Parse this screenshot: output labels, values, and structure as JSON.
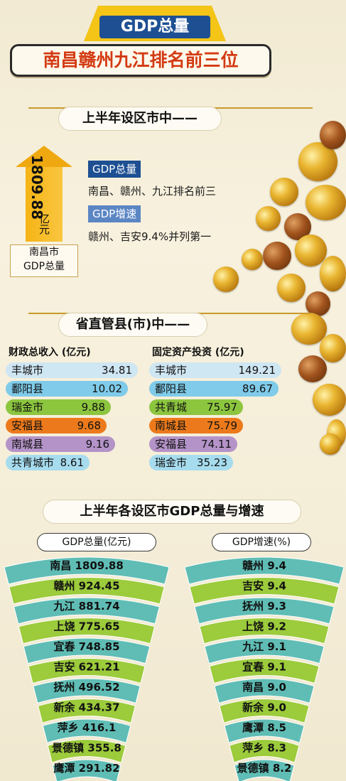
{
  "header": {
    "badge": "GDP总量",
    "subtitle": "南昌赣州九江排名前三位"
  },
  "section1": {
    "heading": "上半年设区市中——",
    "big_number": "1809.88",
    "big_unit": "亿元",
    "caption_line1": "南昌市",
    "caption_line2": "GDP总量",
    "tag1": "GDP总量",
    "text1": "南昌、赣州、九江排名前三",
    "tag2": "GDP增速",
    "text2": "赣州、吉安9.4%并列第一"
  },
  "section2": {
    "heading": "省直管县(市)中——",
    "left_header": "财政总收入   (亿元)",
    "right_header": "固定资产投资  (亿元)",
    "left": [
      {
        "name": "丰城市",
        "value": "34.81"
      },
      {
        "name": "鄱阳县",
        "value": "10.02"
      },
      {
        "name": "瑞金市",
        "value": "9.88"
      },
      {
        "name": "安福县",
        "value": "9.68"
      },
      {
        "name": "南城县",
        "value": "9.16"
      },
      {
        "name": "共青城市",
        "value": "8.61"
      }
    ],
    "right": [
      {
        "name": "丰城市",
        "value": "149.21"
      },
      {
        "name": "鄱阳县",
        "value": "89.67"
      },
      {
        "name": "共青城",
        "value": "75.97"
      },
      {
        "name": "南城县",
        "value": "75.79"
      },
      {
        "name": "安福县",
        "value": "74.11"
      },
      {
        "name": "瑞金市",
        "value": "35.23"
      }
    ]
  },
  "section3": {
    "heading": "上半年各设区市GDP总量与增速",
    "left_legend": "GDP总量(亿元)",
    "right_legend": "GDP增速(%)"
  },
  "colors": {
    "teal": "#5fbdb5",
    "green": "#9ccb3b",
    "navy": "#1d4f92",
    "gold": "#f4c417",
    "red_title": "#d33a12"
  },
  "chart_data": [
    {
      "type": "bar",
      "title": "GDP总量(亿元)",
      "categories": [
        "南昌",
        "赣州",
        "九江",
        "上饶",
        "宜春",
        "吉安",
        "抚州",
        "新余",
        "萍乡",
        "景德镇",
        "鹰潭"
      ],
      "values": [
        1809.88,
        924.45,
        881.74,
        775.65,
        748.85,
        621.21,
        496.52,
        434.37,
        416.1,
        355.8,
        291.82
      ],
      "labels": [
        "1809.88",
        "924.45",
        "881.74",
        "775.65",
        "748.85",
        "621.21",
        "496.52",
        "434.37",
        "416.1",
        "355.8",
        "291.82"
      ]
    },
    {
      "type": "bar",
      "title": "GDP增速(%)",
      "categories": [
        "赣州",
        "吉安",
        "抚州",
        "上饶",
        "九江",
        "宜春",
        "南昌",
        "新余",
        "鹰潭",
        "萍乡",
        "景德镇"
      ],
      "values": [
        9.4,
        9.4,
        9.3,
        9.2,
        9.1,
        9.1,
        9.0,
        9.0,
        8.5,
        8.3,
        8.2
      ],
      "labels": [
        "9.4",
        "9.4",
        "9.3",
        "9.2",
        "9.1",
        "9.1",
        "9.0",
        "9.0",
        "8.5",
        "8.3",
        "8.2"
      ]
    },
    {
      "type": "table",
      "title": "财政总收入",
      "categories": [
        "丰城市",
        "鄱阳县",
        "瑞金市",
        "安福县",
        "南城县",
        "共青城市"
      ],
      "values": [
        34.81,
        10.02,
        9.88,
        9.68,
        9.16,
        8.61
      ]
    },
    {
      "type": "table",
      "title": "固定资产投资",
      "categories": [
        "丰城市",
        "鄱阳县",
        "共青城",
        "南城县",
        "安福县",
        "瑞金市"
      ],
      "values": [
        149.21,
        89.67,
        75.97,
        75.79,
        74.11,
        35.23
      ]
    }
  ]
}
